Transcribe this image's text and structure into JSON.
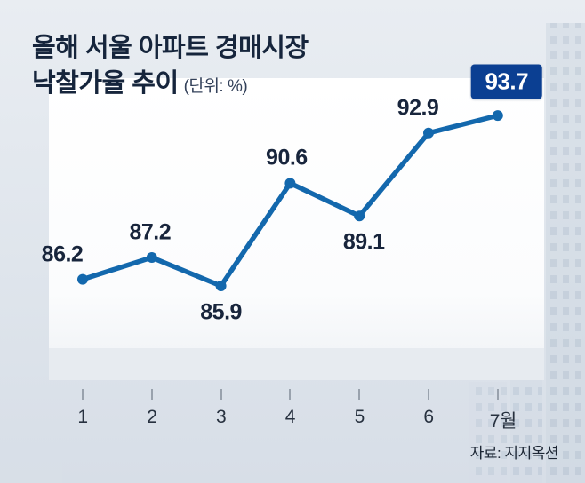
{
  "title": {
    "line1": "올해 서울 아파트 경매시장",
    "line2": "낙찰가율 추이",
    "unit": "(단위: %)"
  },
  "source": "자료: 지지옥션",
  "chart_data": {
    "type": "line",
    "title": "올해 서울 아파트 경매시장 낙찰가율 추이",
    "unit": "%",
    "categories": [
      "1",
      "2",
      "3",
      "4",
      "5",
      "6",
      "7월"
    ],
    "values": [
      86.2,
      87.2,
      85.9,
      90.6,
      89.1,
      92.9,
      93.7
    ],
    "value_labels": [
      "86.2",
      "87.2",
      "85.9",
      "90.6",
      "89.1",
      "92.9",
      "93.7"
    ],
    "label_positions": [
      "above",
      "above",
      "below",
      "above",
      "below",
      "above",
      "box"
    ],
    "ylim": [
      84,
      95
    ],
    "grid": false,
    "legend": false,
    "line_color": "#1368ad",
    "marker_color": "#1368ad",
    "highlight": {
      "index": 6,
      "value_label": "93.7",
      "box_color": "#0b3f92",
      "text_color": "#ffffff"
    }
  },
  "colors": {
    "background": "#dfe5ec",
    "plot_band": "#ffffff",
    "sub_band": "#e7ebf0",
    "title_text": "#16253c",
    "value_text": "#18253c",
    "axis_text": "#27313f",
    "tick": "#99a2ad",
    "skyline": "#bcc8d6"
  }
}
